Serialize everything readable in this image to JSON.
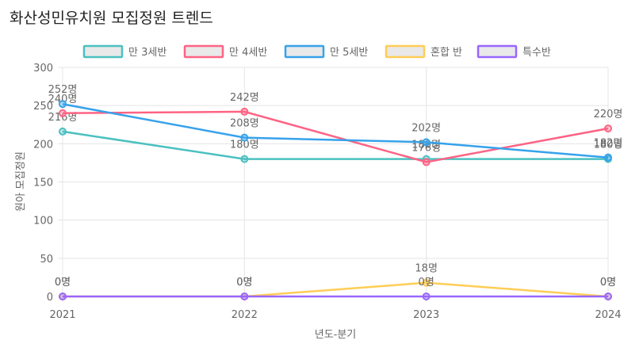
{
  "page": {
    "title": "화산성민유치원 모집정원 트렌드"
  },
  "chart_data": {
    "type": "line",
    "categories": [
      "2021",
      "2022",
      "2023",
      "2024"
    ],
    "xlabel": "년도-분기",
    "ylabel": "원아 모집정원",
    "ylim": [
      0,
      300
    ],
    "yticks": [
      0,
      50,
      100,
      150,
      200,
      250,
      300
    ],
    "value_suffix": "명",
    "legend_position": "top",
    "grid": true,
    "series": [
      {
        "name": "만 3세반",
        "color": "#4bc0c0",
        "values": [
          216,
          180,
          180,
          180
        ]
      },
      {
        "name": "만 4세반",
        "color": "#ff6384",
        "values": [
          240,
          242,
          176,
          220
        ]
      },
      {
        "name": "만 5세반",
        "color": "#36a2eb",
        "values": [
          252,
          208,
          202,
          182
        ]
      },
      {
        "name": "혼합 반",
        "color": "#ffcd56",
        "values": [
          0,
          0,
          18,
          0
        ]
      },
      {
        "name": "특수반",
        "color": "#9966ff",
        "values": [
          0,
          0,
          0,
          0
        ]
      }
    ]
  }
}
